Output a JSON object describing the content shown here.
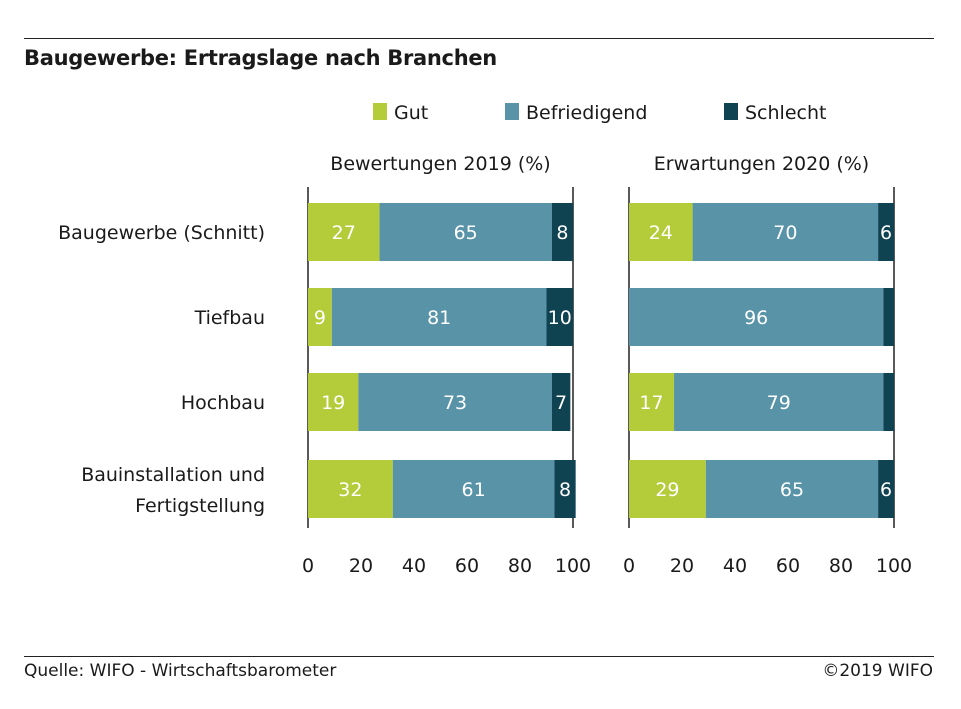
{
  "title": "Baugewerbe: Ertragslage nach Branchen",
  "source": "Quelle: WIFO - Wirtschaftsbarometer",
  "copyright": "©2019 WIFO",
  "colors": {
    "gut": "#b5cc3a",
    "befriedigend": "#5893a8",
    "schlecht": "#0f4352"
  },
  "chart_data": [
    {
      "type": "bar",
      "orientation": "horizontal",
      "stacked": true,
      "title": "Bewertungen 2019 (%)",
      "categories": [
        "Baugewerbe (Schnitt)",
        "Tiefbau",
        "Hochbau",
        "Bauinstallation und Fertigstellung"
      ],
      "series": [
        {
          "name": "Gut",
          "values": [
            27,
            9,
            19,
            32
          ],
          "labels": [
            "27",
            "9",
            "19",
            "32"
          ]
        },
        {
          "name": "Befriedigend",
          "values": [
            65,
            81,
            73,
            61
          ],
          "labels": [
            "65",
            "81",
            "73",
            "61"
          ]
        },
        {
          "name": "Schlecht",
          "values": [
            8,
            10,
            7,
            8
          ],
          "labels": [
            "8",
            "10",
            "7",
            "8"
          ]
        }
      ],
      "xlim": [
        0,
        100
      ],
      "xticks": [
        "0",
        "20",
        "40",
        "60",
        "80",
        "100"
      ],
      "legend": "top"
    },
    {
      "type": "bar",
      "orientation": "horizontal",
      "stacked": true,
      "title": "Erwartungen 2020 (%)",
      "categories": [
        "Baugewerbe (Schnitt)",
        "Tiefbau",
        "Hochbau",
        "Bauinstallation und Fertigstellung"
      ],
      "series": [
        {
          "name": "Gut",
          "values": [
            24,
            0,
            17,
            29
          ],
          "labels": [
            "24",
            "",
            "17",
            "29"
          ]
        },
        {
          "name": "Befriedigend",
          "values": [
            70,
            96,
            79,
            65
          ],
          "labels": [
            "70",
            "96",
            "79",
            "65"
          ]
        },
        {
          "name": "Schlecht",
          "values": [
            6,
            4,
            4,
            6
          ],
          "labels": [
            "6",
            "",
            "",
            "6"
          ]
        }
      ],
      "xlim": [
        0,
        100
      ],
      "xticks": [
        "0",
        "20",
        "40",
        "60",
        "80",
        "100"
      ],
      "legend": "top"
    }
  ]
}
